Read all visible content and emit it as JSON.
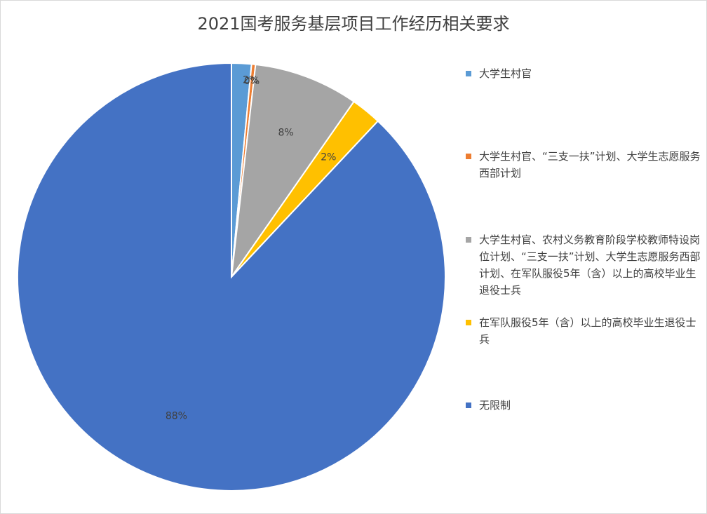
{
  "chart_data": {
    "type": "pie",
    "title": "2021国考服务基层项目工作经历相关要求",
    "categories": [
      "大学生村官",
      "大学生村官、“三支一扶”计划、大学生志愿服务西部计划",
      "大学生村官、农村义务教育阶段学校教师特设岗位计划、“三支一扶”计划、大学生志愿服务西部计划、在军队服役5年（含）以上的高校毕业生退役士兵",
      "在军队服役5年（含）以上的高校毕业生退役士兵",
      "无限制"
    ],
    "values": [
      1.5,
      0.3,
      7.9,
      2.3,
      88.0
    ],
    "data_labels": [
      "2%",
      "0%",
      "8%",
      "2%",
      "88%"
    ],
    "colors": [
      "#5B9BD5",
      "#ED7D31",
      "#A5A5A5",
      "#FFC000",
      "#4472C4"
    ],
    "legend_position": "right"
  }
}
